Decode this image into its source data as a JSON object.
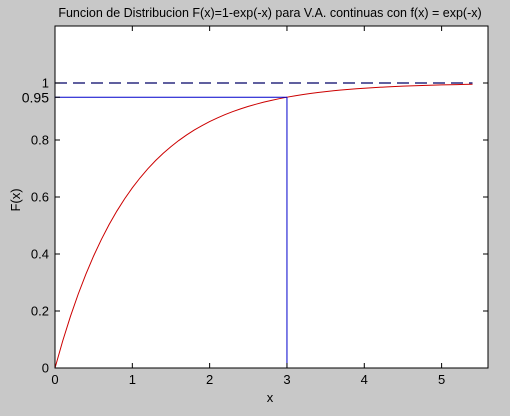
{
  "figure": {
    "background": "#c8c8c8"
  },
  "chart_data": {
    "type": "line",
    "title": "Funcion de Distribucion F(x)=1-exp(-x) para V.A. continuas con f(x) = exp(-x)",
    "xlabel": "x",
    "ylabel": "F(x)",
    "xlim": [
      0,
      5.6
    ],
    "ylim": [
      0,
      1.2
    ],
    "xticks": [
      0,
      1,
      2,
      3,
      4,
      5
    ],
    "xtick_labels": [
      "0",
      "1",
      "2",
      "3",
      "4",
      "5"
    ],
    "yticks": [
      0,
      0.2,
      0.4,
      0.6,
      0.8,
      1
    ],
    "ytick_labels": [
      "0",
      "0.2",
      "0.4",
      "0.6",
      "0.8",
      "1"
    ],
    "extra_ytick": {
      "value": 0.95,
      "label": "0.95"
    },
    "grid": false,
    "legend": "none",
    "series": [
      {
        "color": "#cc0000",
        "style": "solid",
        "x": [
          0,
          0.1,
          0.2,
          0.3,
          0.4,
          0.5,
          0.6,
          0.7,
          0.8,
          0.9,
          1.0,
          1.1,
          1.2,
          1.3,
          1.4,
          1.5,
          1.6,
          1.7,
          1.8,
          1.9,
          2.0,
          2.1,
          2.2,
          2.3,
          2.4,
          2.5,
          2.6,
          2.7,
          2.8,
          2.9,
          3.0,
          3.1,
          3.2,
          3.3,
          3.4,
          3.5,
          3.6,
          3.7,
          3.8,
          3.9,
          4.0,
          4.1,
          4.2,
          4.3,
          4.4,
          4.5,
          4.6,
          4.7,
          4.8,
          4.9,
          5.0,
          5.1,
          5.2,
          5.3,
          5.4
        ],
        "y": [
          0.0,
          0.0952,
          0.1813,
          0.2592,
          0.3297,
          0.3935,
          0.4512,
          0.5034,
          0.5507,
          0.5934,
          0.6321,
          0.6671,
          0.6988,
          0.7275,
          0.7534,
          0.7769,
          0.7981,
          0.8173,
          0.8347,
          0.8504,
          0.8647,
          0.8775,
          0.8892,
          0.8997,
          0.9093,
          0.9179,
          0.9257,
          0.9328,
          0.9392,
          0.945,
          0.9502,
          0.955,
          0.9592,
          0.9631,
          0.9666,
          0.9698,
          0.9727,
          0.9753,
          0.9776,
          0.9798,
          0.9817,
          0.9834,
          0.985,
          0.9864,
          0.9877,
          0.9889,
          0.9899,
          0.9909,
          0.9918,
          0.9926,
          0.9933,
          0.9939,
          0.9945,
          0.995,
          0.9955
        ]
      },
      {
        "color": "#000066",
        "style": "dashed",
        "x": [
          0,
          5.4
        ],
        "y": [
          1,
          1
        ]
      },
      {
        "color": "#0000cc",
        "style": "solid",
        "x": [
          0,
          3
        ],
        "y": [
          0.95,
          0.95
        ]
      },
      {
        "color": "#0000cc",
        "style": "solid",
        "x": [
          3,
          3
        ],
        "y": [
          0,
          0.95
        ]
      }
    ]
  }
}
